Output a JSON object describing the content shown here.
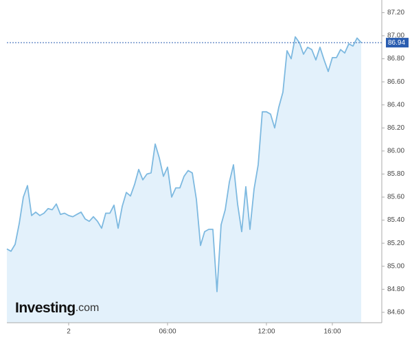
{
  "chart_data": {
    "type": "area",
    "logo": {
      "brand": "Investing",
      "suffix": ".com"
    },
    "color": "#7db9e0",
    "fill_color": "#e3f1fb",
    "last_value": 86.94,
    "last_value_color": "#2a5db0",
    "x": [
      -3.75,
      -3.5,
      -3.25,
      -3,
      -2.75,
      -2.5,
      -2.25,
      -2,
      -1.75,
      -1.5,
      -1.25,
      -1,
      -0.75,
      -0.5,
      -0.25,
      0,
      0.25,
      0.5,
      0.75,
      1,
      1.25,
      1.5,
      1.75,
      2,
      2.25,
      2.5,
      2.75,
      3,
      3.25,
      3.5,
      3.75,
      4,
      4.25,
      4.5,
      4.75,
      5,
      5.25,
      5.5,
      5.75,
      6,
      6.25,
      6.5,
      6.75,
      7,
      7.25,
      7.5,
      7.75,
      8,
      8.25,
      8.5,
      8.75,
      9,
      9.25,
      9.5,
      9.75,
      10,
      10.25,
      10.5,
      10.75,
      11,
      11.25,
      11.5,
      11.75,
      12,
      12.25,
      12.5,
      12.75,
      13,
      13.25,
      13.5,
      13.75,
      14,
      14.25,
      14.5,
      14.75,
      15,
      15.25,
      15.5,
      15.75,
      16,
      16.25,
      16.5,
      16.75,
      17,
      17.25,
      17.5,
      17.75
    ],
    "values": [
      85.15,
      85.13,
      85.19,
      85.37,
      85.6,
      85.7,
      85.44,
      85.47,
      85.44,
      85.46,
      85.5,
      85.49,
      85.54,
      85.45,
      85.46,
      85.44,
      85.43,
      85.45,
      85.47,
      85.41,
      85.39,
      85.43,
      85.39,
      85.33,
      85.46,
      85.46,
      85.53,
      85.33,
      85.52,
      85.64,
      85.61,
      85.71,
      85.84,
      85.75,
      85.8,
      85.81,
      86.06,
      85.94,
      85.78,
      85.86,
      85.6,
      85.68,
      85.68,
      85.78,
      85.83,
      85.81,
      85.58,
      85.18,
      85.3,
      85.32,
      85.32,
      84.78,
      85.36,
      85.49,
      85.73,
      85.88,
      85.54,
      85.3,
      85.69,
      85.32,
      85.67,
      85.88,
      86.34,
      86.34,
      86.32,
      86.2,
      86.38,
      86.51,
      86.87,
      86.8,
      86.99,
      86.94,
      86.84,
      86.9,
      86.88,
      86.79,
      86.9,
      86.79,
      86.69,
      86.81,
      86.81,
      86.88,
      86.85,
      86.93,
      86.91,
      86.98,
      86.94
    ],
    "xlim": [
      -3.75,
      19
    ],
    "xticks": [
      {
        "value": 0,
        "label": "2"
      },
      {
        "value": 6,
        "label": "06:00"
      },
      {
        "value": 12,
        "label": "12:00"
      },
      {
        "value": 16,
        "label": "16:00"
      }
    ],
    "ylim": [
      84.51,
      87.31
    ],
    "yticks": [
      {
        "value": 84.6,
        "label": "84.60"
      },
      {
        "value": 84.8,
        "label": "84.80"
      },
      {
        "value": 85,
        "label": "85.00"
      },
      {
        "value": 85.2,
        "label": "85.20"
      },
      {
        "value": 85.4,
        "label": "85.40"
      },
      {
        "value": 85.6,
        "label": "85.60"
      },
      {
        "value": 85.8,
        "label": "85.80"
      },
      {
        "value": 86,
        "label": "86.00"
      },
      {
        "value": 86.2,
        "label": "86.20"
      },
      {
        "value": 86.4,
        "label": "86.40"
      },
      {
        "value": 86.6,
        "label": "86.60"
      },
      {
        "value": 86.8,
        "label": "86.80"
      },
      {
        "value": 87,
        "label": "87.00"
      },
      {
        "value": 87.2,
        "label": "87.20"
      }
    ]
  }
}
